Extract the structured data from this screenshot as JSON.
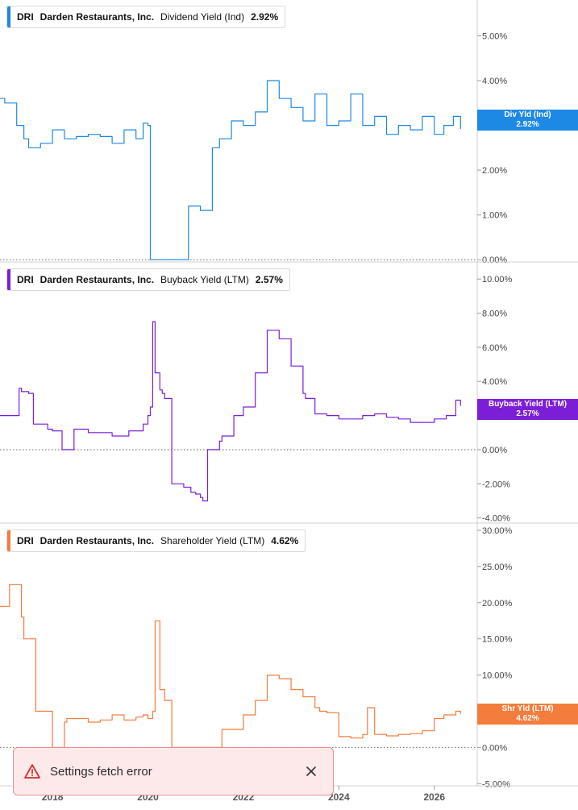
{
  "panels": [
    {
      "ticker": "DRI",
      "company": "Darden Restaurants, Inc.",
      "metric": "Dividend Yield (Ind)",
      "value": "2.92%",
      "color": "#1e88e5",
      "badge_line1": "Div Yld (Ind)",
      "badge_line2": "2.92%"
    },
    {
      "ticker": "DRI",
      "company": "Darden Restaurants, Inc.",
      "metric": "Buyback Yield (LTM)",
      "value": "2.57%",
      "color": "#7b1fd6",
      "badge_line1": "Buyback Yield (LTM)",
      "badge_line2": "2.57%"
    },
    {
      "ticker": "DRI",
      "company": "Darden Restaurants, Inc.",
      "metric": "Shareholder Yield (LTM)",
      "value": "4.62%",
      "color": "#f47c3c",
      "badge_line1": "Shr Yld (LTM)",
      "badge_line2": "4.62%"
    }
  ],
  "toast": {
    "message": "Settings fetch error",
    "icon": "warning-triangle-icon",
    "close_icon": "close-icon"
  },
  "chart_data": [
    {
      "type": "line",
      "series": [
        {
          "name": "Div Yld (Ind)",
          "color": "#1e88e5"
        }
      ],
      "x": [
        2016.9,
        2017.0,
        2017.25,
        2017.4,
        2017.5,
        2017.75,
        2018.0,
        2018.25,
        2018.5,
        2018.75,
        2019.0,
        2019.25,
        2019.5,
        2019.75,
        2019.9,
        2020.0,
        2020.05,
        2020.3,
        2020.5,
        2020.8,
        2020.85,
        2021.0,
        2021.1,
        2021.3,
        2021.35,
        2021.5,
        2021.75,
        2022.0,
        2022.25,
        2022.5,
        2022.75,
        2023.0,
        2023.25,
        2023.5,
        2023.75,
        2024.0,
        2024.25,
        2024.5,
        2024.75,
        2025.0,
        2025.25,
        2025.5,
        2025.75,
        2026.0,
        2026.2,
        2026.4,
        2026.55
      ],
      "y": [
        3.6,
        3.5,
        3.0,
        2.7,
        2.5,
        2.6,
        2.9,
        2.7,
        2.75,
        2.8,
        2.75,
        2.6,
        2.9,
        2.7,
        3.05,
        3.0,
        0.0,
        0.0,
        0.0,
        0.0,
        1.2,
        1.2,
        1.1,
        1.1,
        2.5,
        2.7,
        3.1,
        3.0,
        3.3,
        4.0,
        3.6,
        3.4,
        3.1,
        3.7,
        3.0,
        3.1,
        3.7,
        3.0,
        3.2,
        2.8,
        3.0,
        2.9,
        3.2,
        2.8,
        3.0,
        3.2,
        2.92
      ],
      "ylim": [
        -0.05,
        5.8
      ],
      "yticks": [
        0,
        1,
        2,
        3,
        4,
        5
      ],
      "ytick_labels": [
        "0.00%",
        "1.00%",
        "2.00%",
        "3.00%",
        "4.00%",
        "5.00%"
      ]
    },
    {
      "type": "line",
      "series": [
        {
          "name": "Buyback Yield (LTM)",
          "color": "#7b1fd6"
        }
      ],
      "x": [
        2016.9,
        2017.0,
        2017.3,
        2017.35,
        2017.5,
        2017.6,
        2017.75,
        2017.9,
        2018.0,
        2018.15,
        2018.2,
        2018.3,
        2018.45,
        2018.5,
        2018.75,
        2019.0,
        2019.25,
        2019.45,
        2019.6,
        2019.75,
        2019.9,
        2020.0,
        2020.05,
        2020.1,
        2020.15,
        2020.25,
        2020.3,
        2020.35,
        2020.5,
        2020.75,
        2020.9,
        2021.0,
        2021.1,
        2021.15,
        2021.25,
        2021.5,
        2021.55,
        2021.75,
        2021.8,
        2022.0,
        2022.25,
        2022.5,
        2022.75,
        2023.0,
        2023.25,
        2023.3,
        2023.5,
        2023.75,
        2024.0,
        2024.25,
        2024.5,
        2024.75,
        2025.0,
        2025.25,
        2025.5,
        2025.75,
        2026.0,
        2026.25,
        2026.45,
        2026.55
      ],
      "y": [
        2.0,
        2.0,
        3.6,
        3.4,
        3.3,
        1.5,
        1.5,
        1.2,
        1.1,
        1.1,
        0.0,
        0.0,
        1.2,
        1.2,
        1.0,
        1.0,
        0.8,
        0.8,
        1.1,
        1.1,
        1.5,
        2.0,
        2.5,
        7.5,
        4.5,
        3.5,
        3.3,
        3.0,
        -2.0,
        -2.2,
        -2.5,
        -2.6,
        -2.8,
        -3.0,
        0.0,
        0.5,
        0.8,
        0.8,
        2.0,
        2.5,
        4.5,
        7.0,
        6.5,
        4.9,
        3.3,
        3.0,
        2.1,
        2.0,
        1.8,
        1.8,
        2.0,
        2.1,
        1.9,
        1.8,
        1.6,
        1.6,
        1.8,
        2.0,
        2.9,
        2.57
      ],
      "ylim": [
        -4.3,
        11
      ],
      "yticks": [
        -4,
        -2,
        0,
        2,
        4,
        6,
        8,
        10
      ],
      "ytick_labels": [
        "-4.00%",
        "-2.00%",
        "0.00%",
        "2.00%",
        "4.00%",
        "6.00%",
        "8.00%",
        "10.00%"
      ]
    },
    {
      "type": "line",
      "series": [
        {
          "name": "Shr Yld (LTM)",
          "color": "#f47c3c"
        }
      ],
      "x": [
        2016.9,
        2017.1,
        2017.35,
        2017.4,
        2017.6,
        2017.65,
        2017.8,
        2018.0,
        2018.2,
        2018.25,
        2018.3,
        2018.5,
        2018.75,
        2019.0,
        2019.25,
        2019.5,
        2019.75,
        2019.9,
        2020.0,
        2020.1,
        2020.15,
        2020.25,
        2020.35,
        2020.45,
        2020.5,
        2020.9,
        2021.0,
        2021.5,
        2021.55,
        2021.75,
        2021.8,
        2022.0,
        2022.25,
        2022.5,
        2022.75,
        2023.0,
        2023.25,
        2023.5,
        2023.6,
        2023.75,
        2024.0,
        2024.25,
        2024.5,
        2024.6,
        2024.75,
        2025.0,
        2025.25,
        2025.5,
        2025.75,
        2026.0,
        2026.2,
        2026.45,
        2026.55
      ],
      "y": [
        19.5,
        22.5,
        18.0,
        15.0,
        15.0,
        5.0,
        5.0,
        0.0,
        0.0,
        3.5,
        4.0,
        4.0,
        3.5,
        3.8,
        4.5,
        3.8,
        4.2,
        4.5,
        4.0,
        5.0,
        17.5,
        8.0,
        6.5,
        6.5,
        0.0,
        0.0,
        0.0,
        0.0,
        2.5,
        2.5,
        2.5,
        4.5,
        6.5,
        10.0,
        9.5,
        8.0,
        7.0,
        5.5,
        5.0,
        4.8,
        1.5,
        1.3,
        1.8,
        5.5,
        1.8,
        1.6,
        1.8,
        1.9,
        2.3,
        4.0,
        4.5,
        5.0,
        4.62
      ],
      "ylim": [
        -5.3,
        31
      ],
      "yticks": [
        -5,
        0,
        5,
        10,
        15,
        20,
        25,
        30
      ],
      "ytick_labels": [
        "-5.00%",
        "0.00%",
        "5.00%",
        "10.00%",
        "15.00%",
        "20.00%",
        "25.00%",
        "30.00%"
      ]
    }
  ],
  "x_axis": {
    "min": 2016.9,
    "max": 2026.9,
    "ticks": [
      2018,
      2020,
      2022,
      2024,
      2026
    ],
    "tick_labels": [
      "2018",
      "2020",
      "2022",
      "2024",
      "2026"
    ]
  }
}
